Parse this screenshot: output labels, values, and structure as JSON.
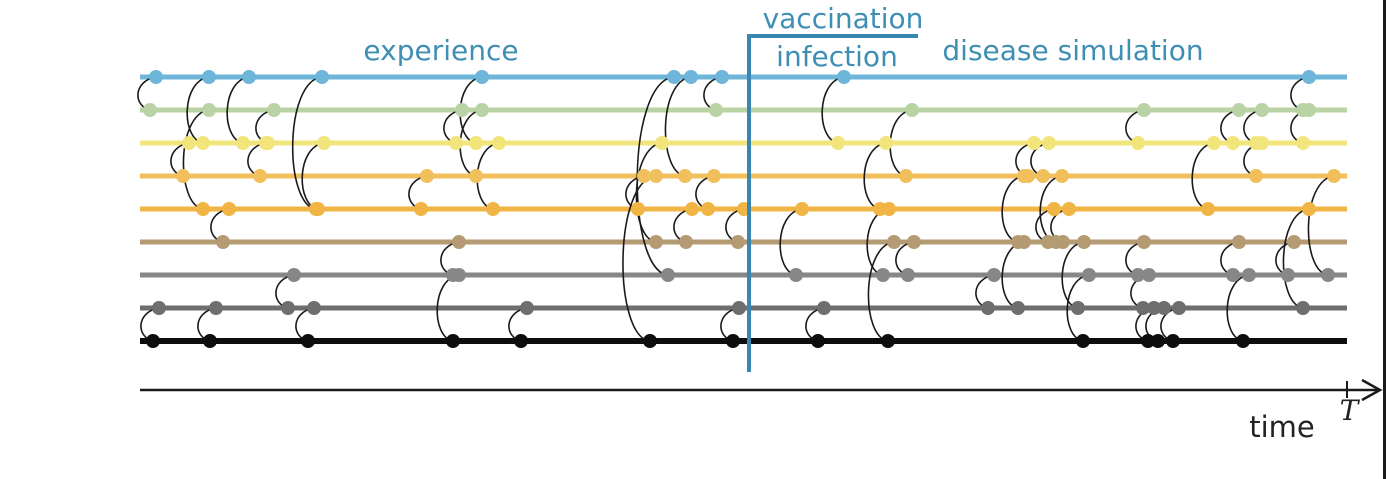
{
  "labels": {
    "experience": "experience",
    "vaccination": "vaccination",
    "infection": "infection",
    "disease_simulation": "disease simulation",
    "time": "time",
    "T": "T"
  },
  "colors": {
    "label_blue": "#3f8fb5",
    "divider": "#3a86b2",
    "arc": "#1a1a1a",
    "axis": "#1a1a1a",
    "tracks": [
      "#6db6da",
      "#b9d3a5",
      "#f2e57c",
      "#f1c05d",
      "#f0b544",
      "#b59b73",
      "#878787",
      "#6e6e6e",
      "#0d0d0d"
    ]
  },
  "contacts": [
    [
      0,
      1,
      152
    ],
    [
      0,
      2,
      205
    ],
    [
      0,
      2,
      245
    ],
    [
      0,
      4,
      318
    ],
    [
      0,
      2,
      478
    ],
    [
      0,
      6,
      670
    ],
    [
      0,
      3,
      687
    ],
    [
      0,
      1,
      718
    ],
    [
      1,
      4,
      205
    ],
    [
      1,
      2,
      270
    ],
    [
      1,
      2,
      458
    ],
    [
      1,
      3,
      478
    ],
    [
      2,
      3,
      185
    ],
    [
      2,
      3,
      262
    ],
    [
      2,
      4,
      320
    ],
    [
      2,
      4,
      495
    ],
    [
      2,
      5,
      658
    ],
    [
      3,
      4,
      423
    ],
    [
      3,
      4,
      640
    ],
    [
      3,
      4,
      710
    ],
    [
      4,
      5,
      225
    ],
    [
      4,
      5,
      688
    ],
    [
      4,
      5,
      740
    ],
    [
      5,
      6,
      455
    ],
    [
      6,
      8,
      455
    ],
    [
      6,
      7,
      290
    ],
    [
      7,
      8,
      155
    ],
    [
      7,
      8,
      212
    ],
    [
      7,
      8,
      310
    ],
    [
      7,
      8,
      523
    ],
    [
      7,
      8,
      735
    ],
    [
      3,
      8,
      652
    ],
    [
      0,
      2,
      840
    ],
    [
      1,
      3,
      908
    ],
    [
      0,
      1,
      1305
    ],
    [
      1,
      2,
      1140
    ],
    [
      1,
      2,
      1235
    ],
    [
      1,
      2,
      1305
    ],
    [
      1,
      2,
      1258
    ],
    [
      2,
      4,
      882
    ],
    [
      2,
      3,
      1030
    ],
    [
      2,
      3,
      1045
    ],
    [
      2,
      4,
      1210
    ],
    [
      2,
      3,
      1258
    ],
    [
      3,
      5,
      1020
    ],
    [
      3,
      5,
      1058
    ],
    [
      3,
      6,
      1330
    ],
    [
      4,
      6,
      798
    ],
    [
      4,
      6,
      885
    ],
    [
      4,
      5,
      1050
    ],
    [
      4,
      5,
      1065
    ],
    [
      4,
      7,
      1305
    ],
    [
      5,
      6,
      910
    ],
    [
      5,
      8,
      890
    ],
    [
      5,
      7,
      1020
    ],
    [
      5,
      7,
      1080
    ],
    [
      5,
      6,
      1140
    ],
    [
      5,
      6,
      1235
    ],
    [
      5,
      6,
      1290
    ],
    [
      6,
      7,
      990
    ],
    [
      6,
      8,
      1085
    ],
    [
      6,
      7,
      1145
    ],
    [
      6,
      8,
      1245
    ],
    [
      7,
      8,
      820
    ],
    [
      7,
      8,
      1150
    ],
    [
      7,
      8,
      1160
    ],
    [
      7,
      8,
      1175
    ]
  ]
}
